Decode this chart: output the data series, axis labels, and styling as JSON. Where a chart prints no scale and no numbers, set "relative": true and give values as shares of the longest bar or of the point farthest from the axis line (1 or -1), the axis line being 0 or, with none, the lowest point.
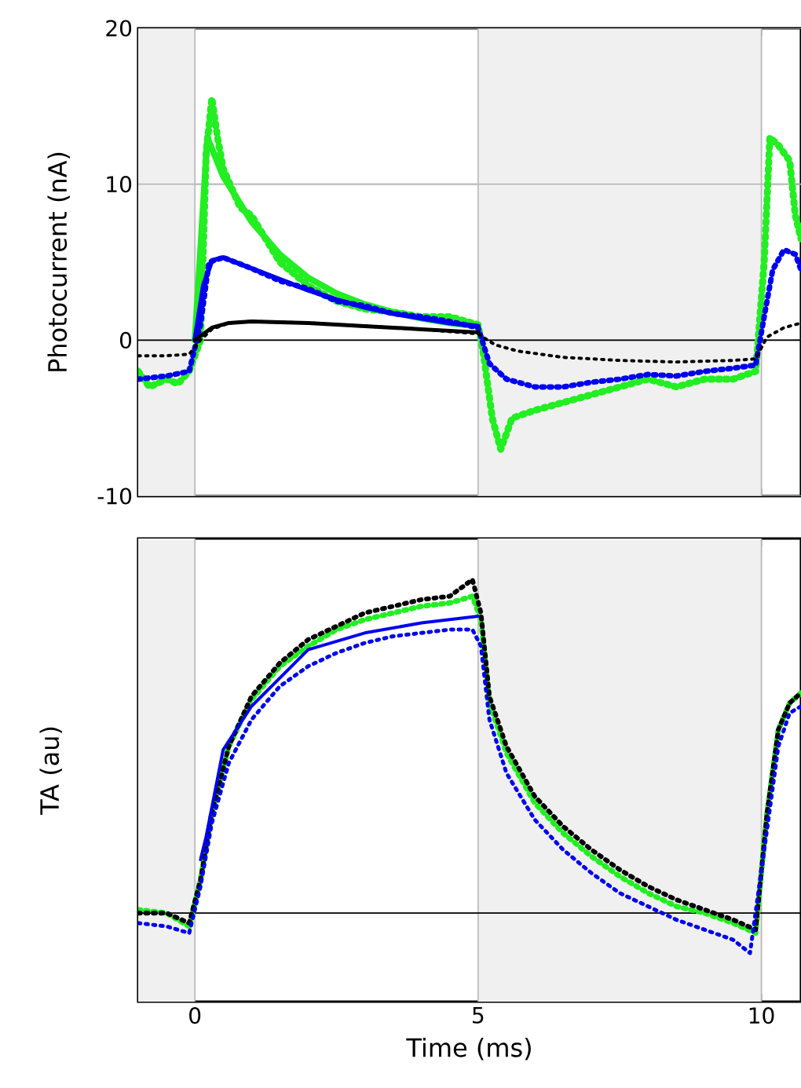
{
  "chart_data": [
    {
      "type": "line",
      "ylabel": "Photocurrent (nA)",
      "xlim": [
        -1,
        10.7
      ],
      "xticks": [
        0,
        5,
        10
      ],
      "ylim": [
        -10,
        20
      ],
      "yticks": [
        -10,
        0,
        10,
        20
      ],
      "grid": true,
      "tick_labels": "y",
      "bands": [
        {
          "axis": "x",
          "from": -1,
          "to": 0,
          "color": "#f0f0f0"
        },
        {
          "axis": "x",
          "from": 5,
          "to": 10,
          "color": "#f0f0f0"
        }
      ],
      "ref_lines": [
        {
          "axis": "y",
          "value": 0,
          "color": "#000000"
        }
      ],
      "series": [
        {
          "color": "#22ee22",
          "line_style": "dotted",
          "x": [
            -1,
            -0.8,
            -0.5,
            -0.3,
            -0.1,
            0.1,
            0.2,
            0.3,
            0.4,
            0.5,
            0.8,
            1.0,
            1.5,
            2.0,
            2.5,
            3.0,
            3.5,
            4.0,
            4.5,
            5.0,
            5.1,
            5.25,
            5.4,
            5.6,
            6.0,
            6.5,
            7.0,
            7.5,
            8.0,
            8.5,
            9.0,
            9.5,
            9.9,
            10.05,
            10.15,
            10.3,
            10.5,
            10.6,
            10.7
          ],
          "values": [
            -2,
            -3,
            -2.5,
            -2.8,
            -2,
            0,
            12,
            15.5,
            13,
            11,
            8.5,
            8,
            5,
            3.5,
            2.5,
            2,
            1.8,
            1.5,
            1.5,
            1,
            -1,
            -5,
            -7,
            -5,
            -4.5,
            -4,
            -3.5,
            -3,
            -2.5,
            -3,
            -2.5,
            -2.5,
            -2,
            5,
            13,
            12.5,
            11.5,
            8,
            6.5
          ]
        },
        {
          "color": "#22ee22",
          "line_style": "solid",
          "x": [
            0,
            0.22,
            0.5,
            1.0,
            1.5,
            2.0,
            2.5,
            3.0,
            3.5,
            4.0,
            4.5,
            5.0
          ],
          "values": [
            0,
            13,
            10.5,
            7.6,
            5.5,
            4,
            3,
            2.3,
            1.8,
            1.4,
            1.1,
            0.9
          ]
        },
        {
          "color": "#0000ee",
          "line_style": "dotted",
          "x": [
            -1,
            -0.5,
            -0.1,
            0.1,
            0.25,
            0.5,
            1.0,
            1.5,
            2.0,
            2.5,
            3.0,
            3.5,
            4.0,
            4.5,
            5.0,
            5.2,
            5.5,
            6.0,
            6.5,
            7.0,
            7.5,
            8.0,
            8.5,
            9.0,
            9.5,
            9.9,
            10.05,
            10.2,
            10.4,
            10.6,
            10.7
          ],
          "values": [
            -2.5,
            -2.3,
            -2,
            1,
            5,
            5.3,
            4.6,
            3.8,
            3.3,
            2.5,
            2.2,
            1.7,
            1.5,
            1.2,
            0.8,
            -1.5,
            -2.5,
            -3,
            -3,
            -2.7,
            -2.5,
            -2.2,
            -2.3,
            -2,
            -1.8,
            -1.6,
            1.5,
            4.5,
            5.8,
            5.5,
            4.5
          ]
        },
        {
          "color": "#0000ee",
          "line_style": "solid",
          "x": [
            0,
            0.15,
            0.3,
            0.5,
            1.0,
            1.5,
            2.0,
            2.5,
            3.0,
            3.5,
            4.0,
            4.5,
            5.0
          ],
          "values": [
            0,
            3.5,
            5.1,
            5.3,
            4.6,
            3.9,
            3.2,
            2.6,
            2.1,
            1.7,
            1.4,
            1.1,
            0.9
          ]
        },
        {
          "color": "#000000",
          "line_style": "solid",
          "x": [
            0,
            0.3,
            0.6,
            1.0,
            2.0,
            3.0,
            4.0,
            5.0
          ],
          "values": [
            0,
            0.8,
            1.1,
            1.2,
            1.1,
            0.9,
            0.7,
            0.5
          ]
        },
        {
          "color": "#000000",
          "line_style": "dotted",
          "x": [
            -1,
            -0.5,
            -0.1,
            0.1,
            0.3,
            0.6,
            1.0,
            2.0,
            3.0,
            4.0,
            5.0,
            5.3,
            5.7,
            6.5,
            7.5,
            8.5,
            9.5,
            9.9,
            10.1,
            10.4,
            10.7
          ],
          "values": [
            -1,
            -1,
            -0.9,
            0,
            0.7,
            1.1,
            1.2,
            1.1,
            0.9,
            0.7,
            0.4,
            -0.3,
            -0.7,
            -1.1,
            -1.3,
            -1.4,
            -1.3,
            -1.2,
            0.2,
            0.8,
            1.1
          ]
        }
      ]
    },
    {
      "type": "line",
      "xlabel": "Time (ms)",
      "ylabel": "TA (au)",
      "relative": true,
      "xlim": [
        -1,
        10.7
      ],
      "xticks": [
        0,
        5,
        10
      ],
      "grid": "x",
      "tick_labels": "x",
      "bands": [
        {
          "axis": "x",
          "from": -1,
          "to": 0,
          "color": "#f0f0f0"
        },
        {
          "axis": "x",
          "from": 5,
          "to": 10,
          "color": "#f0f0f0"
        }
      ],
      "ref_lines": [
        {
          "axis": "y",
          "value": 0,
          "color": "#000000"
        }
      ],
      "series": [
        {
          "color": "#22ee22",
          "line_style": "dotted",
          "x": [
            -1,
            -0.5,
            -0.1,
            0.1,
            0.3,
            0.6,
            1.0,
            1.5,
            2.0,
            2.5,
            3.0,
            3.5,
            4.0,
            4.5,
            4.9,
            5.05,
            5.2,
            5.5,
            6.0,
            6.5,
            7.0,
            7.5,
            8.0,
            8.5,
            9.0,
            9.5,
            9.9,
            10.1,
            10.3,
            10.5,
            10.7
          ],
          "values": [
            0.01,
            0,
            -0.04,
            0.1,
            0.3,
            0.5,
            0.64,
            0.74,
            0.8,
            0.85,
            0.88,
            0.9,
            0.92,
            0.93,
            0.95,
            0.88,
            0.63,
            0.48,
            0.33,
            0.24,
            0.17,
            0.11,
            0.06,
            0.02,
            0,
            -0.03,
            -0.06,
            0.3,
            0.55,
            0.63,
            0.66
          ]
        },
        {
          "color": "#000000",
          "line_style": "dotted",
          "x": [
            -1,
            -0.5,
            -0.1,
            0.1,
            0.3,
            0.6,
            1.0,
            1.5,
            2.0,
            2.5,
            3.0,
            3.5,
            4.0,
            4.5,
            4.9,
            5.05,
            5.2,
            5.5,
            6.0,
            6.5,
            7.0,
            7.5,
            8.0,
            8.5,
            9.0,
            9.5,
            9.9,
            10.1,
            10.3,
            10.5,
            10.7
          ],
          "values": [
            0,
            0,
            -0.03,
            0.1,
            0.3,
            0.5,
            0.65,
            0.75,
            0.82,
            0.86,
            0.9,
            0.92,
            0.94,
            0.95,
            1,
            0.9,
            0.65,
            0.5,
            0.35,
            0.26,
            0.19,
            0.13,
            0.08,
            0.04,
            0.01,
            -0.02,
            -0.05,
            0.3,
            0.55,
            0.63,
            0.66
          ]
        },
        {
          "color": "#0000ee",
          "line_style": "dotted",
          "x": [
            -1,
            -0.5,
            -0.1,
            0.1,
            0.3,
            0.6,
            1.0,
            1.5,
            2.0,
            2.5,
            3.0,
            3.5,
            4.0,
            4.5,
            4.9,
            5.05,
            5.2,
            5.5,
            6.0,
            6.5,
            7.0,
            7.5,
            8.0,
            8.5,
            9.0,
            9.5,
            9.8,
            10.1,
            10.3,
            10.5,
            10.7
          ],
          "values": [
            -0.03,
            -0.04,
            -0.06,
            0.08,
            0.27,
            0.45,
            0.58,
            0.68,
            0.74,
            0.78,
            0.81,
            0.83,
            0.84,
            0.85,
            0.85,
            0.8,
            0.58,
            0.42,
            0.28,
            0.19,
            0.12,
            0.06,
            0.02,
            -0.02,
            -0.05,
            -0.08,
            -0.12,
            0.25,
            0.5,
            0.6,
            0.62
          ]
        },
        {
          "color": "#0000ee",
          "line_style": "solid",
          "x": [
            0.1,
            0.2,
            0.5,
            1.0,
            2.0,
            3.0,
            4.0,
            5.0
          ],
          "values": [
            0.16,
            0.23,
            0.49,
            0.62,
            0.79,
            0.84,
            0.87,
            0.89
          ]
        }
      ]
    }
  ]
}
